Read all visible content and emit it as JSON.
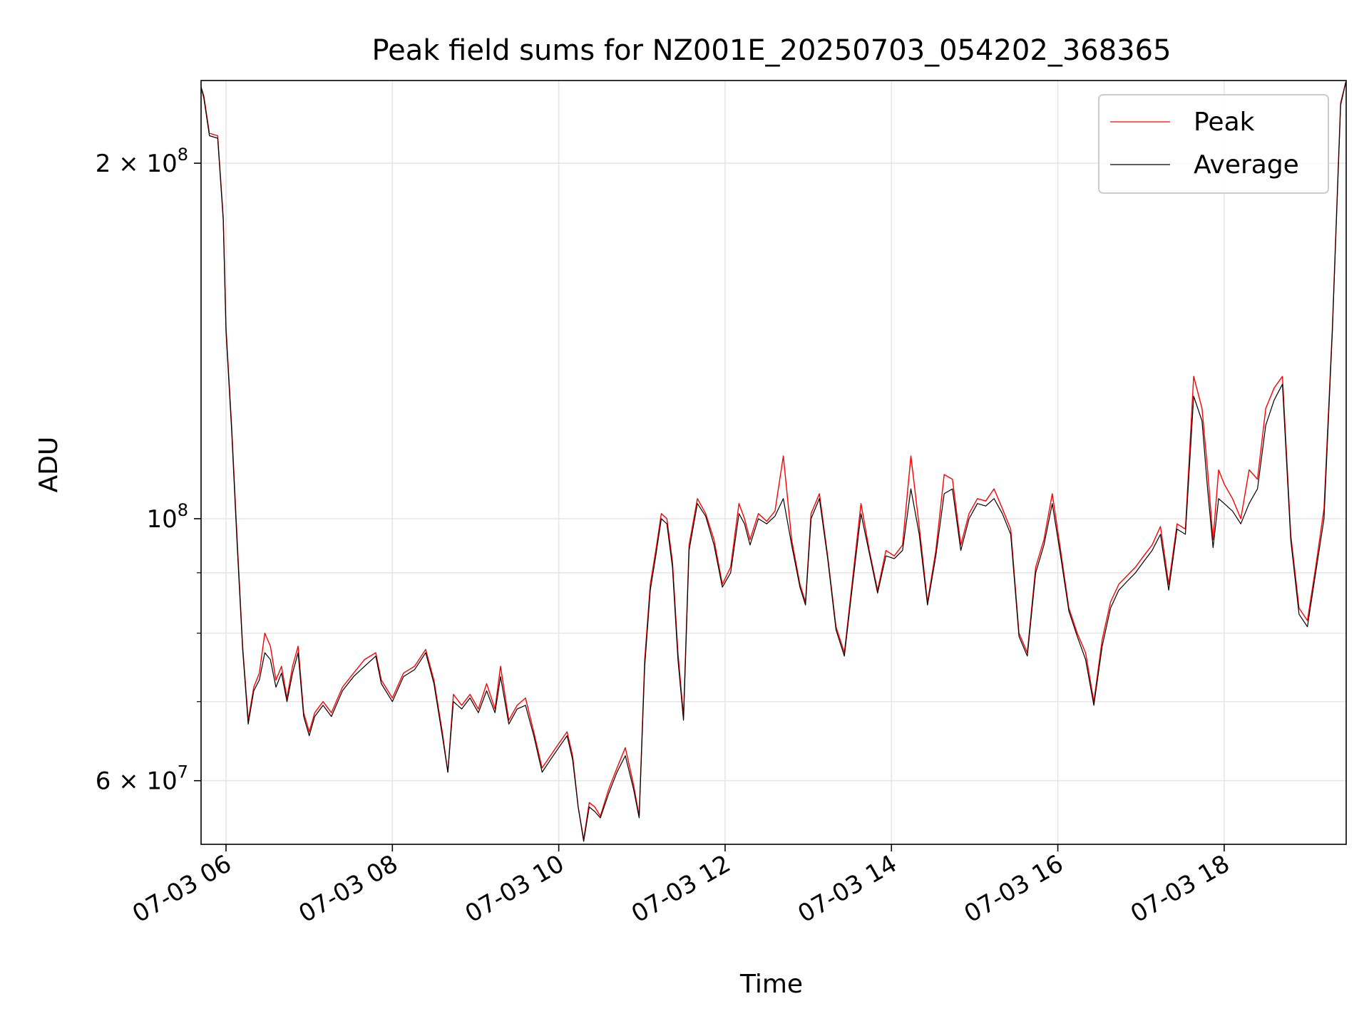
{
  "chart_data": {
    "type": "line",
    "title": "Peak field sums for NZ001E_20250703_054202_368365",
    "xlabel": "Time",
    "ylabel": "ADU",
    "x_range": [
      "07-03 05:42",
      "07-03 19:28"
    ],
    "yscale": "log",
    "ylim": [
      53000000,
      235000000
    ],
    "grid": true,
    "legend_position": "upper right",
    "x_ticks": [
      {
        "value": "07-03 06:00",
        "label": "07-03 06"
      },
      {
        "value": "07-03 08:00",
        "label": "07-03 08"
      },
      {
        "value": "07-03 10:00",
        "label": "07-03 10"
      },
      {
        "value": "07-03 12:00",
        "label": "07-03 12"
      },
      {
        "value": "07-03 14:00",
        "label": "07-03 14"
      },
      {
        "value": "07-03 16:00",
        "label": "07-03 16"
      },
      {
        "value": "07-03 18:00",
        "label": "07-03 18"
      }
    ],
    "y_major_ticks": [
      {
        "value": 60000000,
        "mant": "6",
        "exp": "7"
      },
      {
        "value": 100000000,
        "mant": "",
        "exp": "8"
      },
      {
        "value": 200000000,
        "mant": "2",
        "exp": "8"
      }
    ],
    "y_minor_ticks": [
      70000000,
      80000000,
      90000000
    ],
    "colors": {
      "peak": "#ff0000",
      "average": "#000000"
    },
    "series": [
      {
        "name": "Peak",
        "x": [
          "07-03 05:42",
          "07-03 05:44",
          "07-03 05:48",
          "07-03 05:54",
          "07-03 05:58",
          "07-03 06:00",
          "07-03 06:04",
          "07-03 06:08",
          "07-03 06:12",
          "07-03 06:16",
          "07-03 06:20",
          "07-03 06:24",
          "07-03 06:28",
          "07-03 06:32",
          "07-03 06:36",
          "07-03 06:40",
          "07-03 06:44",
          "07-03 06:48",
          "07-03 06:52",
          "07-03 06:56",
          "07-03 07:00",
          "07-03 07:04",
          "07-03 07:10",
          "07-03 07:16",
          "07-03 07:24",
          "07-03 07:32",
          "07-03 07:40",
          "07-03 07:48",
          "07-03 07:52",
          "07-03 08:00",
          "07-03 08:08",
          "07-03 08:16",
          "07-03 08:24",
          "07-03 08:30",
          "07-03 08:36",
          "07-03 08:40",
          "07-03 08:44",
          "07-03 08:50",
          "07-03 08:56",
          "07-03 09:02",
          "07-03 09:08",
          "07-03 09:14",
          "07-03 09:18",
          "07-03 09:24",
          "07-03 09:30",
          "07-03 09:36",
          "07-03 09:42",
          "07-03 09:48",
          "07-03 09:54",
          "07-03 10:00",
          "07-03 10:06",
          "07-03 10:10",
          "07-03 10:14",
          "07-03 10:18",
          "07-03 10:22",
          "07-03 10:26",
          "07-03 10:30",
          "07-03 10:36",
          "07-03 10:42",
          "07-03 10:48",
          "07-03 10:54",
          "07-03 10:58",
          "07-03 11:02",
          "07-03 11:06",
          "07-03 11:10",
          "07-03 11:14",
          "07-03 11:18",
          "07-03 11:22",
          "07-03 11:26",
          "07-03 11:30",
          "07-03 11:34",
          "07-03 11:40",
          "07-03 11:46",
          "07-03 11:52",
          "07-03 11:58",
          "07-03 12:04",
          "07-03 12:10",
          "07-03 12:14",
          "07-03 12:18",
          "07-03 12:24",
          "07-03 12:30",
          "07-03 12:36",
          "07-03 12:42",
          "07-03 12:48",
          "07-03 12:54",
          "07-03 12:58",
          "07-03 13:02",
          "07-03 13:08",
          "07-03 13:14",
          "07-03 13:20",
          "07-03 13:26",
          "07-03 13:32",
          "07-03 13:38",
          "07-03 13:44",
          "07-03 13:50",
          "07-03 13:56",
          "07-03 14:02",
          "07-03 14:08",
          "07-03 14:14",
          "07-03 14:20",
          "07-03 14:26",
          "07-03 14:32",
          "07-03 14:38",
          "07-03 14:44",
          "07-03 14:50",
          "07-03 14:56",
          "07-03 15:02",
          "07-03 15:08",
          "07-03 15:14",
          "07-03 15:20",
          "07-03 15:26",
          "07-03 15:32",
          "07-03 15:38",
          "07-03 15:44",
          "07-03 15:50",
          "07-03 15:56",
          "07-03 16:02",
          "07-03 16:08",
          "07-03 16:14",
          "07-03 16:20",
          "07-03 16:26",
          "07-03 16:32",
          "07-03 16:38",
          "07-03 16:44",
          "07-03 16:50",
          "07-03 16:56",
          "07-03 17:02",
          "07-03 17:08",
          "07-03 17:14",
          "07-03 17:20",
          "07-03 17:26",
          "07-03 17:32",
          "07-03 17:38",
          "07-03 17:44",
          "07-03 17:48",
          "07-03 17:52",
          "07-03 17:56",
          "07-03 18:00",
          "07-03 18:06",
          "07-03 18:12",
          "07-03 18:18",
          "07-03 18:24",
          "07-03 18:30",
          "07-03 18:36",
          "07-03 18:42",
          "07-03 18:48",
          "07-03 18:54",
          "07-03 19:00",
          "07-03 19:06",
          "07-03 19:12",
          "07-03 19:18",
          "07-03 19:24",
          "07-03 19:28"
        ],
        "y": [
          232000000,
          228000000,
          212000000,
          211000000,
          180000000,
          145000000,
          120000000,
          96000000,
          78000000,
          67500000,
          72000000,
          74000000,
          80000000,
          78000000,
          73000000,
          75000000,
          70500000,
          75000000,
          78000000,
          68500000,
          66000000,
          68500000,
          70000000,
          68500000,
          72000000,
          74000000,
          76000000,
          77000000,
          73000000,
          70500000,
          74000000,
          75000000,
          77500000,
          73000000,
          66000000,
          61000000,
          71000000,
          69500000,
          71000000,
          69000000,
          72500000,
          69000000,
          75000000,
          67500000,
          69500000,
          70500000,
          66000000,
          61500000,
          63000000,
          64500000,
          66000000,
          63000000,
          57000000,
          53500000,
          57500000,
          57000000,
          56000000,
          59000000,
          61500000,
          64000000,
          59500000,
          56000000,
          76000000,
          88000000,
          94000000,
          101000000,
          100000000,
          92000000,
          77000000,
          68000000,
          95000000,
          104000000,
          101000000,
          96000000,
          88000000,
          91000000,
          103000000,
          100000000,
          96000000,
          101000000,
          99500000,
          101500000,
          113000000,
          96000000,
          88000000,
          85000000,
          101000000,
          105000000,
          93000000,
          81000000,
          77000000,
          89000000,
          103000000,
          94000000,
          87000000,
          94000000,
          93000000,
          95000000,
          113000000,
          98500000,
          85000000,
          94000000,
          109000000,
          108000000,
          95000000,
          101000000,
          104000000,
          103500000,
          106000000,
          102000000,
          98000000,
          80000000,
          77000000,
          91000000,
          96000000,
          105000000,
          94000000,
          84000000,
          80000000,
          77000000,
          70000000,
          79000000,
          85000000,
          88000000,
          89500000,
          91000000,
          93000000,
          95000000,
          98500000,
          88000000,
          99000000,
          98000000,
          132000000,
          124000000,
          110000000,
          96000000,
          110000000,
          107000000,
          104000000,
          100000000,
          110000000,
          108000000,
          124000000,
          129000000,
          132000000,
          97000000,
          84000000,
          82000000,
          91000000,
          102000000,
          145000000,
          225000000,
          235000000
        ]
      },
      {
        "name": "Average",
        "x": [
          "07-03 05:42",
          "07-03 05:44",
          "07-03 05:48",
          "07-03 05:54",
          "07-03 05:58",
          "07-03 06:00",
          "07-03 06:04",
          "07-03 06:08",
          "07-03 06:12",
          "07-03 06:16",
          "07-03 06:20",
          "07-03 06:24",
          "07-03 06:28",
          "07-03 06:32",
          "07-03 06:36",
          "07-03 06:40",
          "07-03 06:44",
          "07-03 06:48",
          "07-03 06:52",
          "07-03 06:56",
          "07-03 07:00",
          "07-03 07:04",
          "07-03 07:10",
          "07-03 07:16",
          "07-03 07:24",
          "07-03 07:32",
          "07-03 07:40",
          "07-03 07:48",
          "07-03 07:52",
          "07-03 08:00",
          "07-03 08:08",
          "07-03 08:16",
          "07-03 08:24",
          "07-03 08:30",
          "07-03 08:36",
          "07-03 08:40",
          "07-03 08:44",
          "07-03 08:50",
          "07-03 08:56",
          "07-03 09:02",
          "07-03 09:08",
          "07-03 09:14",
          "07-03 09:18",
          "07-03 09:24",
          "07-03 09:30",
          "07-03 09:36",
          "07-03 09:42",
          "07-03 09:48",
          "07-03 09:54",
          "07-03 10:00",
          "07-03 10:06",
          "07-03 10:10",
          "07-03 10:14",
          "07-03 10:18",
          "07-03 10:22",
          "07-03 10:26",
          "07-03 10:30",
          "07-03 10:36",
          "07-03 10:42",
          "07-03 10:48",
          "07-03 10:54",
          "07-03 10:58",
          "07-03 11:02",
          "07-03 11:06",
          "07-03 11:10",
          "07-03 11:14",
          "07-03 11:18",
          "07-03 11:22",
          "07-03 11:26",
          "07-03 11:30",
          "07-03 11:34",
          "07-03 11:40",
          "07-03 11:46",
          "07-03 11:52",
          "07-03 11:58",
          "07-03 12:04",
          "07-03 12:10",
          "07-03 12:14",
          "07-03 12:18",
          "07-03 12:24",
          "07-03 12:30",
          "07-03 12:36",
          "07-03 12:42",
          "07-03 12:48",
          "07-03 12:54",
          "07-03 12:58",
          "07-03 13:02",
          "07-03 13:08",
          "07-03 13:14",
          "07-03 13:20",
          "07-03 13:26",
          "07-03 13:32",
          "07-03 13:38",
          "07-03 13:44",
          "07-03 13:50",
          "07-03 13:56",
          "07-03 14:02",
          "07-03 14:08",
          "07-03 14:14",
          "07-03 14:20",
          "07-03 14:26",
          "07-03 14:32",
          "07-03 14:38",
          "07-03 14:44",
          "07-03 14:50",
          "07-03 14:56",
          "07-03 15:02",
          "07-03 15:08",
          "07-03 15:14",
          "07-03 15:20",
          "07-03 15:26",
          "07-03 15:32",
          "07-03 15:38",
          "07-03 15:44",
          "07-03 15:50",
          "07-03 15:56",
          "07-03 16:02",
          "07-03 16:08",
          "07-03 16:14",
          "07-03 16:20",
          "07-03 16:26",
          "07-03 16:32",
          "07-03 16:38",
          "07-03 16:44",
          "07-03 16:50",
          "07-03 16:56",
          "07-03 17:02",
          "07-03 17:08",
          "07-03 17:14",
          "07-03 17:20",
          "07-03 17:26",
          "07-03 17:32",
          "07-03 17:38",
          "07-03 17:44",
          "07-03 17:48",
          "07-03 17:52",
          "07-03 17:56",
          "07-03 18:00",
          "07-03 18:06",
          "07-03 18:12",
          "07-03 18:18",
          "07-03 18:24",
          "07-03 18:30",
          "07-03 18:36",
          "07-03 18:42",
          "07-03 18:48",
          "07-03 18:54",
          "07-03 19:00",
          "07-03 19:06",
          "07-03 19:12",
          "07-03 19:18",
          "07-03 19:24",
          "07-03 19:28"
        ],
        "y": [
          232000000,
          227000000,
          211000000,
          210000000,
          179000000,
          144000000,
          119000000,
          95000000,
          77500000,
          67000000,
          71500000,
          73000000,
          77000000,
          76000000,
          72000000,
          74000000,
          70000000,
          74000000,
          77000000,
          68000000,
          65500000,
          68000000,
          69500000,
          68000000,
          71500000,
          73500000,
          75000000,
          76500000,
          72500000,
          70000000,
          73500000,
          74500000,
          77000000,
          72500000,
          65500000,
          61000000,
          70000000,
          69000000,
          70500000,
          68500000,
          71500000,
          68500000,
          73500000,
          67000000,
          69000000,
          69500000,
          65500000,
          61000000,
          62500000,
          64000000,
          65500000,
          62500000,
          57000000,
          53300000,
          57000000,
          56500000,
          55800000,
          58500000,
          61000000,
          63000000,
          59000000,
          55800000,
          75000000,
          87000000,
          93000000,
          100000000,
          99000000,
          91000000,
          76000000,
          67500000,
          94000000,
          103000000,
          100500000,
          95000000,
          87500000,
          90000000,
          101000000,
          99000000,
          95000000,
          100000000,
          99000000,
          100500000,
          104000000,
          95000000,
          87500000,
          84500000,
          100000000,
          104000000,
          92500000,
          80500000,
          76500000,
          88000000,
          101000000,
          93500000,
          86500000,
          93000000,
          92500000,
          94000000,
          106000000,
          97000000,
          84500000,
          93000000,
          105000000,
          106000000,
          94000000,
          100000000,
          103000000,
          102500000,
          104000000,
          101000000,
          97000000,
          79500000,
          76500000,
          90000000,
          95000000,
          103000000,
          93000000,
          83500000,
          79500000,
          76000000,
          69500000,
          78000000,
          84000000,
          87000000,
          88500000,
          90000000,
          92000000,
          94000000,
          97000000,
          87000000,
          98000000,
          97000000,
          127000000,
          121000000,
          106000000,
          94500000,
          104000000,
          103000000,
          101500000,
          99000000,
          103000000,
          106000000,
          120000000,
          126000000,
          130000000,
          96000000,
          83000000,
          81000000,
          90000000,
          100000000,
          144000000,
          224000000,
          235000000
        ]
      }
    ]
  }
}
